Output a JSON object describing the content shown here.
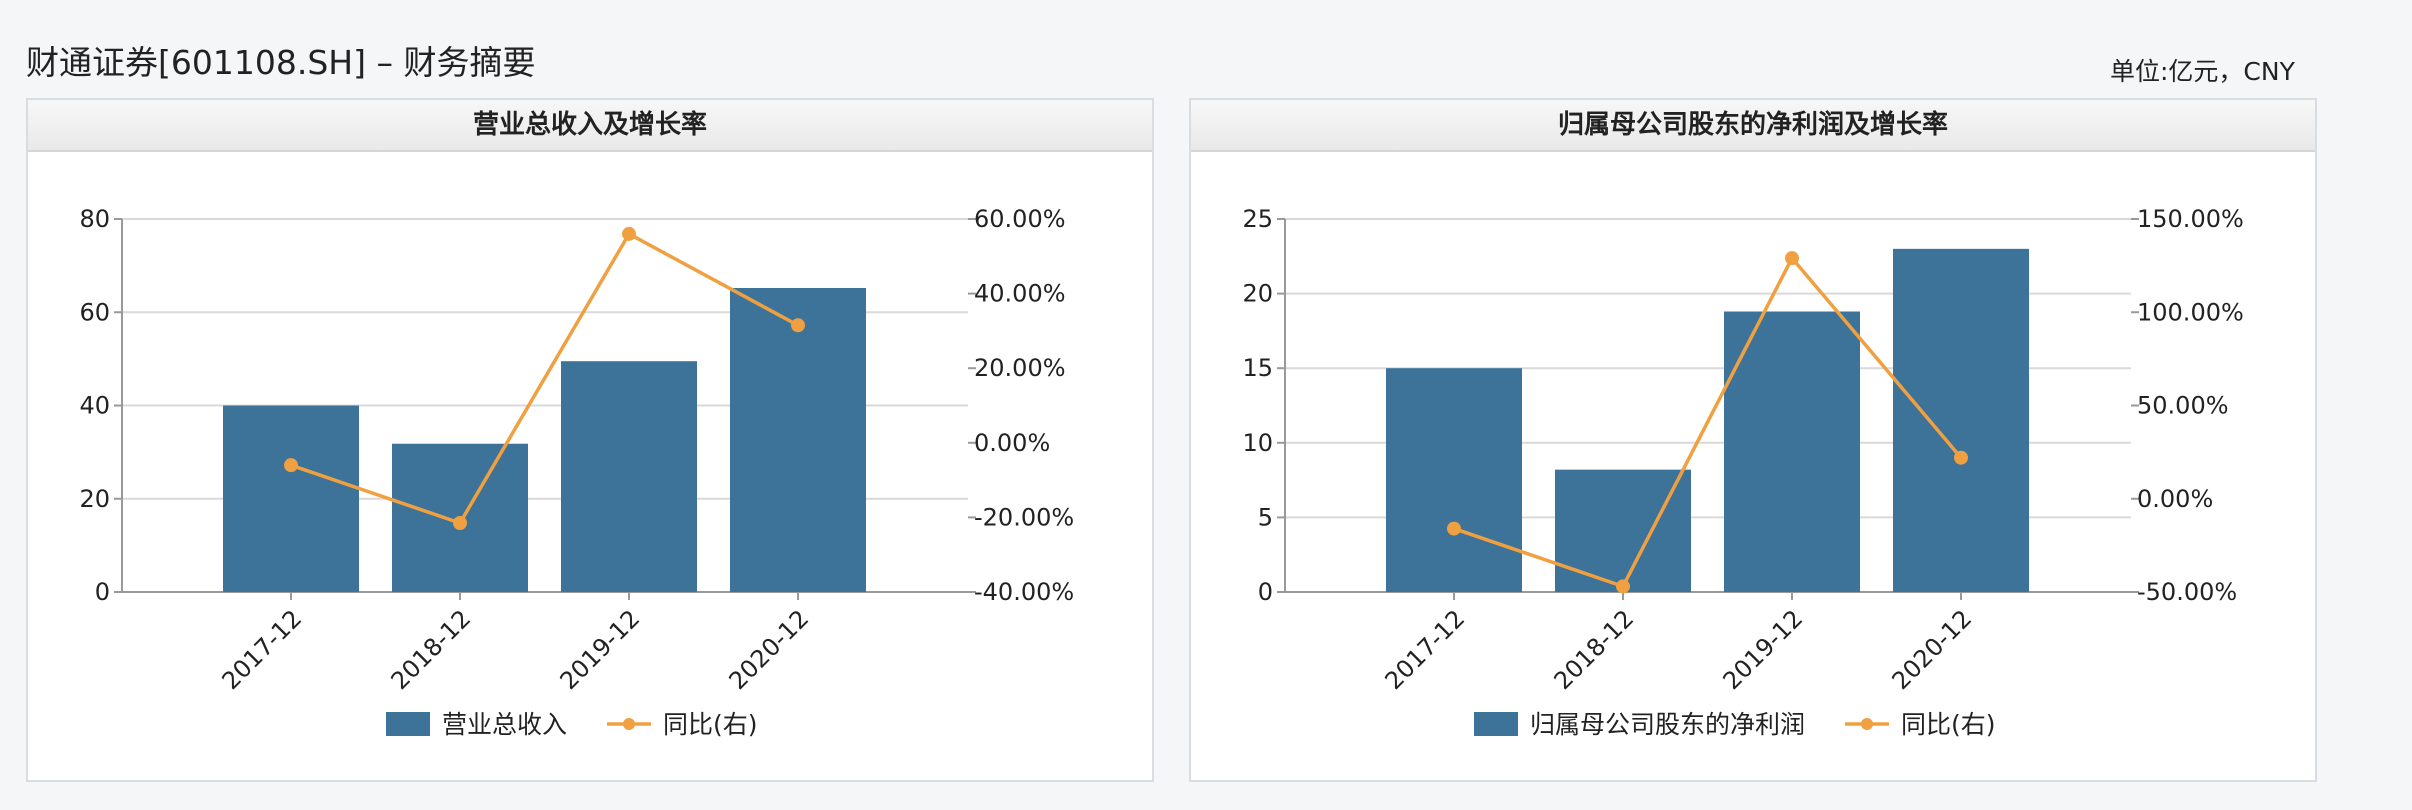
{
  "page": {
    "title": "财通证券[601108.SH] – 财务摘要",
    "unit": "单位:亿元，CNY"
  },
  "colors": {
    "bar": "#3d7399",
    "line": "#f0a040",
    "grid": "#d9d9d9",
    "axis": "#999999"
  },
  "chart_data": [
    {
      "type": "bar",
      "title": "营业总收入及增长率",
      "categories": [
        "2017-12",
        "2018-12",
        "2019-12",
        "2020-12"
      ],
      "series": [
        {
          "name": "营业总收入",
          "type": "bar",
          "axis": "left",
          "values": [
            40.0,
            31.8,
            49.5,
            65.2
          ]
        },
        {
          "name": "同比(右)",
          "type": "line",
          "axis": "right",
          "values": [
            -6.0,
            -21.5,
            56.0,
            31.5
          ]
        }
      ],
      "yleft": {
        "min": 0,
        "max": 80,
        "ticks": [
          "0",
          "20",
          "40",
          "60",
          "80"
        ]
      },
      "yright": {
        "min": -40,
        "max": 60,
        "ticks": [
          "-40.00%",
          "-20.00%",
          "0.00%",
          "20.00%",
          "40.00%",
          "60.00%"
        ]
      },
      "grid": true,
      "legend": "bottom-center"
    },
    {
      "type": "bar",
      "title": "归属母公司股东的净利润及增长率",
      "categories": [
        "2017-12",
        "2018-12",
        "2019-12",
        "2020-12"
      ],
      "series": [
        {
          "name": "归属母公司股东的净利润",
          "type": "bar",
          "axis": "left",
          "values": [
            15.0,
            8.2,
            18.8,
            23.0
          ]
        },
        {
          "name": "同比(右)",
          "type": "line",
          "axis": "right",
          "values": [
            -16.0,
            -47.0,
            129.0,
            22.0
          ]
        }
      ],
      "yleft": {
        "min": 0,
        "max": 25,
        "ticks": [
          "0",
          "5",
          "10",
          "15",
          "20",
          "25"
        ]
      },
      "yright": {
        "min": -50,
        "max": 150,
        "ticks": [
          "-50.00%",
          "0.00%",
          "50.00%",
          "100.00%",
          "150.00%"
        ]
      },
      "grid": true,
      "legend": "bottom-center"
    }
  ]
}
